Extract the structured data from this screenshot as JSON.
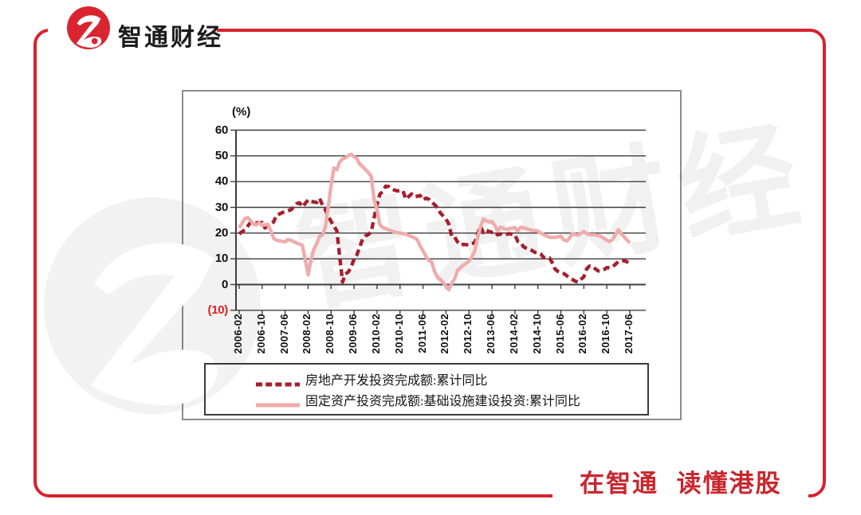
{
  "brand": {
    "logo_text": "智通财经",
    "slogan": "在智通 读懂港股",
    "brand_red": "#D7232F",
    "logo_red": "#DA2530",
    "slogan_red": "#C8272E"
  },
  "chart_data": {
    "type": "line",
    "title": "",
    "unit_label": "(%)",
    "ylim": [
      -10,
      60
    ],
    "y_tick_step": 10,
    "y_tick_labels": [
      "60",
      "50",
      "40",
      "30",
      "20",
      "10",
      "0",
      "(10)"
    ],
    "y_tick_values": [
      60,
      50,
      40,
      30,
      20,
      10,
      0,
      -10
    ],
    "negative_tick_color": "#E02020",
    "grid_color": "#3d3d3d",
    "grid_on": true,
    "x_start": "2006-02",
    "months_per_tick": 8,
    "x_tick_labels": [
      "2006-02",
      "2006-10",
      "2007-06",
      "2008-02",
      "2008-10",
      "2009-06",
      "2010-02",
      "2010-10",
      "2011-06",
      "2012-02",
      "2012-10",
      "2013-06",
      "2014-02",
      "2014-10",
      "2015-06",
      "2016-02",
      "2016-10",
      "2017-06"
    ],
    "legend_position": "bottom",
    "series": [
      {
        "name": "房地产开发投资完成额:累计同比",
        "color": "#A61E2D",
        "style": "dashed",
        "points": [
          [
            0,
            19.7
          ],
          [
            2,
            21.3
          ],
          [
            4,
            24.2
          ],
          [
            5,
            23.8
          ],
          [
            6,
            24.0
          ],
          [
            8,
            24.1
          ],
          [
            9,
            22.0
          ],
          [
            10,
            23.0
          ],
          [
            12,
            24.3
          ],
          [
            13,
            26.9
          ],
          [
            14,
            27.4
          ],
          [
            16,
            28.5
          ],
          [
            18,
            29.0
          ],
          [
            20,
            31.4
          ],
          [
            21,
            31.8
          ],
          [
            22,
            30.2
          ],
          [
            24,
            32.9
          ],
          [
            25,
            32.3
          ],
          [
            26,
            32.1
          ],
          [
            27,
            31.9
          ],
          [
            28,
            33.5
          ],
          [
            29,
            30.9
          ],
          [
            30,
            29.1
          ],
          [
            31,
            26.5
          ],
          [
            32,
            24.6
          ],
          [
            33,
            22.7
          ],
          [
            34,
            20.9
          ],
          [
            36,
            1.0
          ],
          [
            37,
            4.1
          ],
          [
            38,
            4.9
          ],
          [
            39,
            6.8
          ],
          [
            40,
            9.9
          ],
          [
            41,
            11.6
          ],
          [
            42,
            14.7
          ],
          [
            43,
            17.7
          ],
          [
            44,
            18.9
          ],
          [
            45,
            19.5
          ],
          [
            46,
            20.5
          ],
          [
            47,
            26.0
          ],
          [
            48,
            31.1
          ],
          [
            49,
            35.1
          ],
          [
            50,
            36.2
          ],
          [
            51,
            38.2
          ],
          [
            52,
            38.1
          ],
          [
            53,
            37.2
          ],
          [
            54,
            36.7
          ],
          [
            55,
            36.4
          ],
          [
            56,
            36.5
          ],
          [
            57,
            36.5
          ],
          [
            58,
            33.2
          ],
          [
            60,
            35.2
          ],
          [
            61,
            34.1
          ],
          [
            62,
            34.3
          ],
          [
            63,
            34.6
          ],
          [
            64,
            32.9
          ],
          [
            65,
            33.6
          ],
          [
            66,
            33.2
          ],
          [
            67,
            32.0
          ],
          [
            68,
            31.1
          ],
          [
            69,
            29.9
          ],
          [
            70,
            27.9
          ],
          [
            72,
            25.5
          ],
          [
            73,
            23.5
          ],
          [
            74,
            18.7
          ],
          [
            75,
            18.5
          ],
          [
            76,
            16.6
          ],
          [
            77,
            15.4
          ],
          [
            78,
            15.6
          ],
          [
            80,
            15.4
          ],
          [
            81,
            16.0
          ],
          [
            82,
            16.2
          ],
          [
            83,
            19.5
          ],
          [
            84,
            22.8
          ],
          [
            85,
            20.2
          ],
          [
            86,
            21.1
          ],
          [
            87,
            20.6
          ],
          [
            88,
            20.3
          ],
          [
            89,
            20.5
          ],
          [
            90,
            19.3
          ],
          [
            91,
            19.7
          ],
          [
            92,
            19.2
          ],
          [
            93,
            19.5
          ],
          [
            94,
            19.8
          ],
          [
            96,
            19.3
          ],
          [
            97,
            16.8
          ],
          [
            98,
            16.4
          ],
          [
            99,
            14.7
          ],
          [
            100,
            14.1
          ],
          [
            101,
            13.7
          ],
          [
            102,
            13.2
          ],
          [
            103,
            12.5
          ],
          [
            104,
            12.4
          ],
          [
            105,
            11.9
          ],
          [
            106,
            10.5
          ],
          [
            108,
            10.4
          ],
          [
            109,
            8.5
          ],
          [
            110,
            6.0
          ],
          [
            111,
            5.1
          ],
          [
            112,
            4.6
          ],
          [
            113,
            4.3
          ],
          [
            114,
            3.5
          ],
          [
            115,
            2.6
          ],
          [
            116,
            2.0
          ],
          [
            117,
            1.3
          ],
          [
            118,
            1.0
          ],
          [
            120,
            3.0
          ],
          [
            121,
            6.2
          ],
          [
            122,
            7.2
          ],
          [
            123,
            7.0
          ],
          [
            124,
            6.1
          ],
          [
            125,
            5.3
          ],
          [
            126,
            5.4
          ],
          [
            127,
            5.8
          ],
          [
            128,
            6.6
          ],
          [
            129,
            6.5
          ],
          [
            130,
            6.9
          ],
          [
            132,
            8.9
          ],
          [
            133,
            9.1
          ],
          [
            134,
            9.3
          ],
          [
            135,
            8.8
          ],
          [
            136,
            8.5
          ]
        ]
      },
      {
        "name": "固定资产投资完成额:基础设施建设投资:累计同比",
        "color": "#EFACAC",
        "style": "solid",
        "points": [
          [
            0,
            22.0
          ],
          [
            2,
            25.6
          ],
          [
            3,
            26.0
          ],
          [
            4,
            24.8
          ],
          [
            5,
            23.4
          ],
          [
            6,
            23.2
          ],
          [
            7,
            24.0
          ],
          [
            8,
            23.0
          ],
          [
            10,
            23.4
          ],
          [
            11,
            21.0
          ],
          [
            12,
            18.0
          ],
          [
            13,
            17.2
          ],
          [
            14,
            17.0
          ],
          [
            16,
            16.6
          ],
          [
            17,
            17.5
          ],
          [
            18,
            17.2
          ],
          [
            20,
            16.1
          ],
          [
            22,
            15.3
          ],
          [
            24,
            3.8
          ],
          [
            25,
            9.5
          ],
          [
            26,
            13.7
          ],
          [
            27,
            16.0
          ],
          [
            28,
            18.8
          ],
          [
            29,
            19.2
          ],
          [
            30,
            22.3
          ],
          [
            31,
            30.0
          ],
          [
            32,
            38.5
          ],
          [
            33,
            45.3
          ],
          [
            34,
            44.6
          ],
          [
            35,
            47.6
          ],
          [
            36,
            48.8
          ],
          [
            37,
            49.3
          ],
          [
            38,
            50.1
          ],
          [
            39,
            50.6
          ],
          [
            40,
            49.7
          ],
          [
            41,
            48.9
          ],
          [
            42,
            46.8
          ],
          [
            43,
            45.8
          ],
          [
            44,
            44.6
          ],
          [
            45,
            43.6
          ],
          [
            46,
            42.0
          ],
          [
            47,
            33.0
          ],
          [
            48,
            29.2
          ],
          [
            49,
            23.2
          ],
          [
            50,
            22.2
          ],
          [
            52,
            21.3
          ],
          [
            54,
            20.4
          ],
          [
            56,
            20.0
          ],
          [
            58,
            19.6
          ],
          [
            60,
            18.6
          ],
          [
            61,
            18.2
          ],
          [
            62,
            17.4
          ],
          [
            63,
            15.0
          ],
          [
            64,
            13.1
          ],
          [
            65,
            11.0
          ],
          [
            66,
            9.4
          ],
          [
            67,
            8.8
          ],
          [
            68,
            5.2
          ],
          [
            69,
            2.9
          ],
          [
            70,
            2.0
          ],
          [
            72,
            -0.5
          ],
          [
            73,
            -2.0
          ],
          [
            74,
            0.5
          ],
          [
            75,
            2.3
          ],
          [
            76,
            5.4
          ],
          [
            77,
            6.5
          ],
          [
            78,
            7.5
          ],
          [
            80,
            9.0
          ],
          [
            81,
            10.6
          ],
          [
            82,
            13.0
          ],
          [
            83,
            18.0
          ],
          [
            84,
            22.3
          ],
          [
            85,
            25.5
          ],
          [
            86,
            24.8
          ],
          [
            87,
            24.3
          ],
          [
            88,
            24.5
          ],
          [
            89,
            22.9
          ],
          [
            90,
            21.0
          ],
          [
            91,
            22.3
          ],
          [
            92,
            21.8
          ],
          [
            93,
            21.5
          ],
          [
            94,
            21.7
          ],
          [
            96,
            22.1
          ],
          [
            97,
            20.8
          ],
          [
            98,
            22.3
          ],
          [
            99,
            22.0
          ],
          [
            100,
            21.7
          ],
          [
            102,
            21.0
          ],
          [
            104,
            20.8
          ],
          [
            105,
            20.0
          ],
          [
            106,
            19.4
          ],
          [
            108,
            18.4
          ],
          [
            110,
            18.3
          ],
          [
            111,
            18.6
          ],
          [
            112,
            18.8
          ],
          [
            113,
            17.4
          ],
          [
            114,
            16.9
          ],
          [
            115,
            18.0
          ],
          [
            116,
            19.8
          ],
          [
            117,
            19.4
          ],
          [
            118,
            19.2
          ],
          [
            120,
            20.6
          ],
          [
            121,
            19.8
          ],
          [
            122,
            19.4
          ],
          [
            124,
            19.3
          ],
          [
            126,
            18.7
          ],
          [
            128,
            17.2
          ],
          [
            129,
            16.7
          ],
          [
            130,
            17.5
          ],
          [
            132,
            21.3
          ],
          [
            133,
            19.8
          ],
          [
            134,
            18.6
          ],
          [
            135,
            17.3
          ],
          [
            136,
            16.2
          ]
        ]
      }
    ],
    "watermark_text": "智通财经"
  }
}
